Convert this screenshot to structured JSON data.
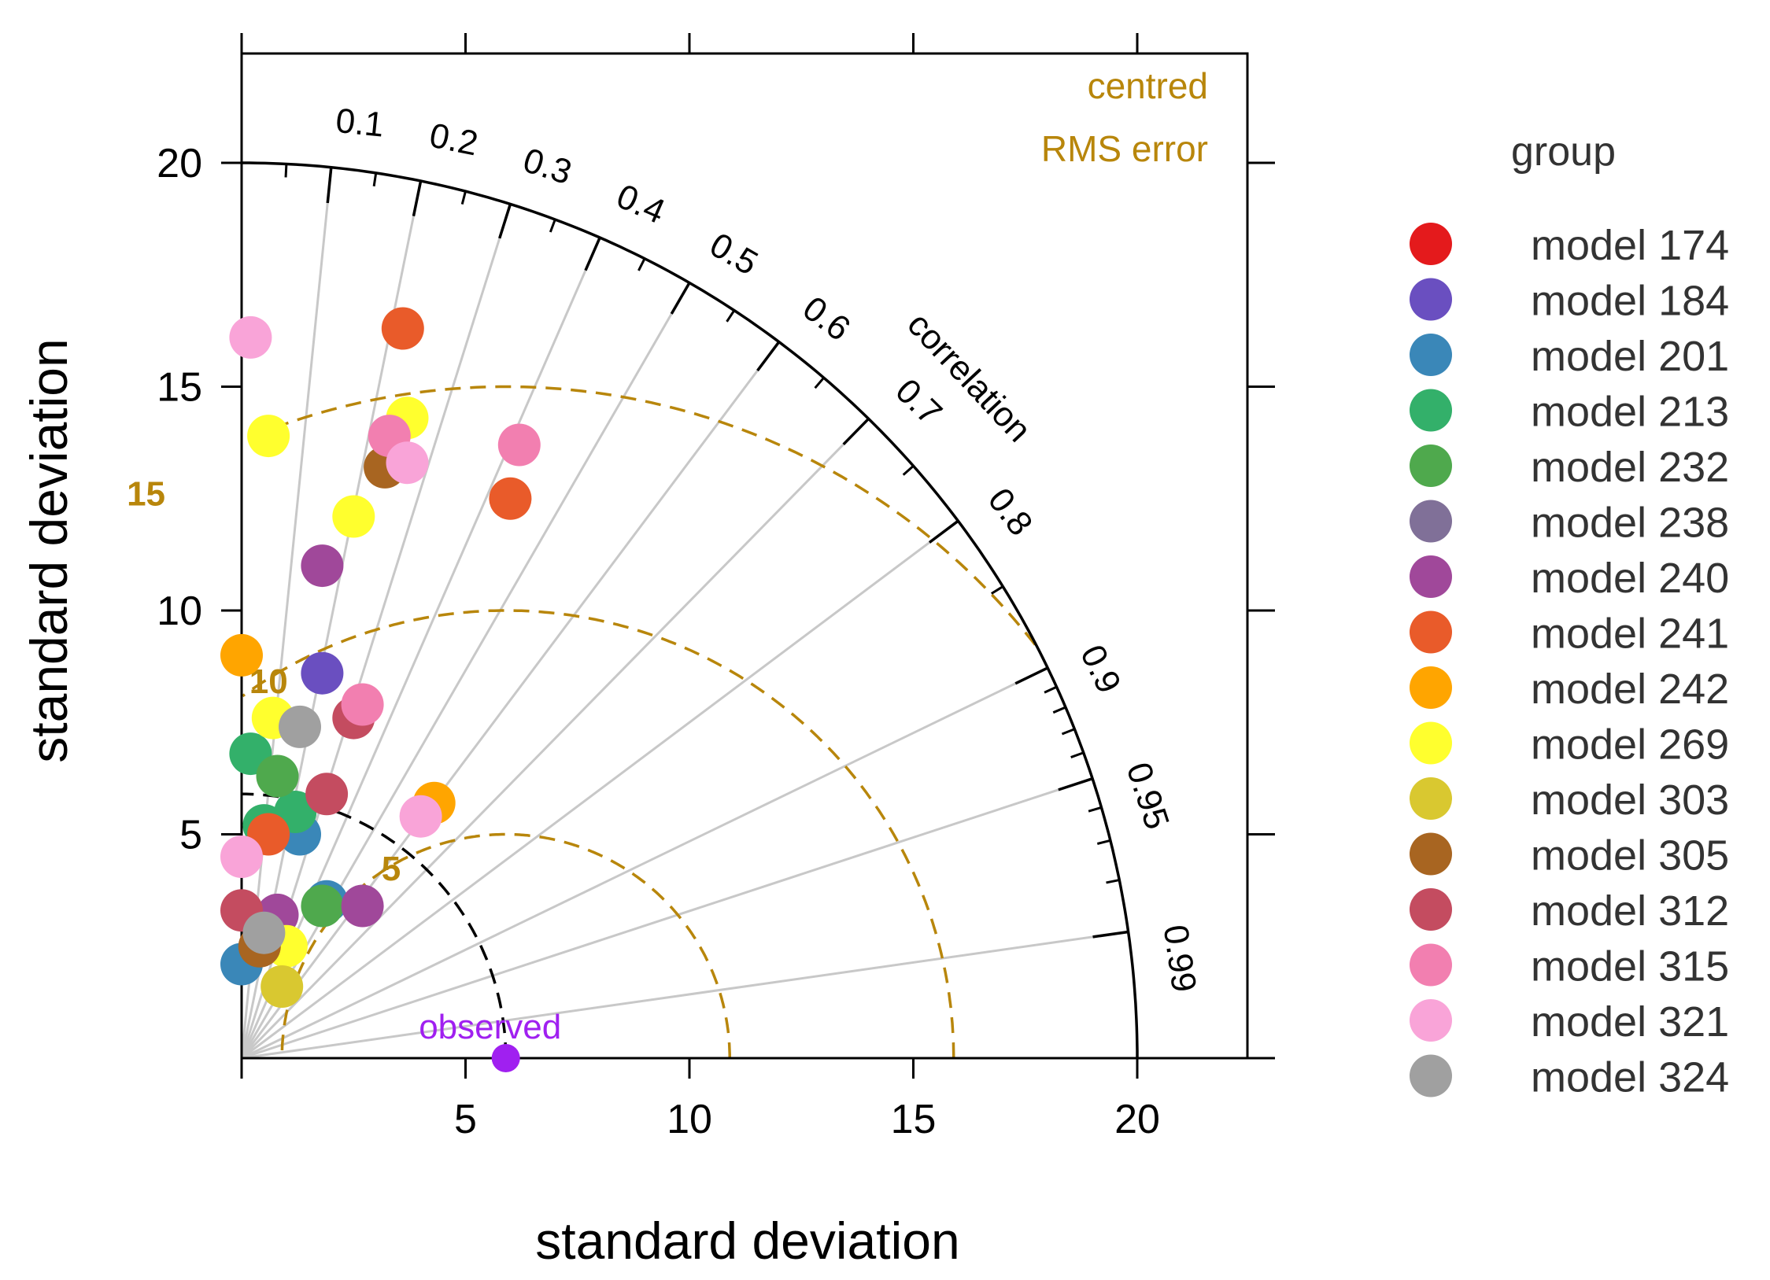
{
  "chart_data": {
    "type": "scatter",
    "subtype": "taylor-diagram",
    "xlabel": "standard deviation",
    "ylabel": "standard deviation",
    "xlim": [
      0,
      22.5
    ],
    "ylim": [
      0,
      22.5
    ],
    "x_ticks": [
      "5",
      "10",
      "15",
      "20"
    ],
    "y_ticks": [
      "5",
      "10",
      "15",
      "20"
    ],
    "correlation_label": "correlation",
    "correlation_ticks": [
      "0.1",
      "0.2",
      "0.3",
      "0.4",
      "0.5",
      "0.6",
      "0.7",
      "0.8",
      "0.9",
      "0.95",
      "0.99"
    ],
    "rms_title_line1": "centred",
    "rms_title_line2": "RMS error",
    "rms_contours": [
      {
        "value": 5,
        "label": "5"
      },
      {
        "value": 10,
        "label": "10"
      },
      {
        "value": 15,
        "label": "15"
      }
    ],
    "observed": {
      "label": "observed",
      "sd": 5.9,
      "color": "#a020f0"
    },
    "legend_title": "group",
    "colors": {
      "axis": "#000000",
      "rms": "#b8860b",
      "radial": "#c8c8c8",
      "observed_arc": "#000000"
    },
    "series": [
      {
        "name": "model 174",
        "color": "#e41a1c",
        "points": []
      },
      {
        "name": "model 184",
        "color": "#6a4fc0",
        "points": [
          [
            1.8,
            8.6
          ]
        ]
      },
      {
        "name": "model 201",
        "color": "#3a87b8",
        "points": [
          [
            1.3,
            5.0
          ],
          [
            1.9,
            3.5
          ],
          [
            0.0,
            2.1
          ]
        ]
      },
      {
        "name": "model 213",
        "color": "#33b06a",
        "points": [
          [
            0.2,
            6.8
          ],
          [
            0.5,
            5.2
          ],
          [
            1.2,
            5.5
          ]
        ]
      },
      {
        "name": "model 232",
        "color": "#4fa94d",
        "points": [
          [
            0.8,
            6.3
          ],
          [
            1.8,
            3.4
          ]
        ]
      },
      {
        "name": "model 238",
        "color": "#807098",
        "points": []
      },
      {
        "name": "model 240",
        "color": "#a0489a",
        "points": [
          [
            1.8,
            11.0
          ],
          [
            2.7,
            3.4
          ],
          [
            0.8,
            3.2
          ]
        ]
      },
      {
        "name": "model 241",
        "color": "#e95b2a",
        "points": [
          [
            3.6,
            16.3
          ],
          [
            6.0,
            12.5
          ],
          [
            0.6,
            5.0
          ]
        ]
      },
      {
        "name": "model 242",
        "color": "#ffa500",
        "points": [
          [
            0.0,
            9.0
          ],
          [
            4.3,
            5.7
          ]
        ]
      },
      {
        "name": "model 269",
        "color": "#ffff2e",
        "points": [
          [
            3.7,
            14.3
          ],
          [
            0.6,
            13.9
          ],
          [
            2.5,
            12.1
          ],
          [
            0.7,
            7.6
          ],
          [
            1.0,
            2.5
          ]
        ]
      },
      {
        "name": "model 303",
        "color": "#d9c830",
        "points": [
          [
            0.9,
            1.6
          ]
        ]
      },
      {
        "name": "model 305",
        "color": "#a86521",
        "points": [
          [
            3.2,
            13.2
          ],
          [
            0.4,
            2.5
          ]
        ]
      },
      {
        "name": "model 312",
        "color": "#c44c60",
        "points": [
          [
            2.5,
            7.6
          ],
          [
            1.9,
            5.9
          ],
          [
            0.0,
            3.3
          ]
        ]
      },
      {
        "name": "model 315",
        "color": "#f27fb0",
        "points": [
          [
            6.2,
            13.7
          ],
          [
            3.3,
            13.9
          ],
          [
            2.7,
            7.9
          ]
        ]
      },
      {
        "name": "model 321",
        "color": "#f9a4d8",
        "points": [
          [
            0.2,
            16.1
          ],
          [
            3.7,
            13.3
          ],
          [
            4.0,
            5.4
          ],
          [
            0.0,
            4.5
          ]
        ]
      },
      {
        "name": "model 324",
        "color": "#a0a0a0",
        "points": [
          [
            1.3,
            7.4
          ],
          [
            0.5,
            2.8
          ]
        ]
      }
    ]
  }
}
